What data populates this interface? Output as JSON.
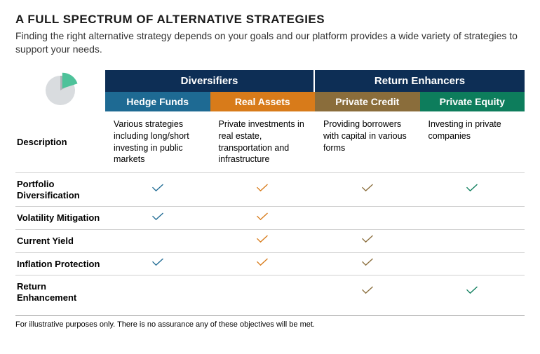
{
  "title": "A FULL SPECTRUM OF ALTERNATIVE STRATEGIES",
  "subtitle": "Finding the right alternative strategy depends on your goals and our platform provides a wide variety of strategies to support your needs.",
  "footnote": "For illustrative purposes only. There is no assurance any of these objectives will be met.",
  "colors": {
    "group_header_bg": "#0d2e55",
    "hedge_funds": "#1e6a93",
    "real_assets": "#d87b1a",
    "private_credit": "#8a6d3b",
    "private_equity": "#0d7d5c",
    "divider": "#d0d0d0",
    "pie_gray_light": "#d9dcdf",
    "pie_gray_dark": "#b0b4b8",
    "pie_accent": "#4ec29a"
  },
  "groups": [
    {
      "label": "Diversifiers",
      "span": 2
    },
    {
      "label": "Return Enhancers",
      "span": 2
    }
  ],
  "columns": [
    {
      "label": "Hedge Funds",
      "color_key": "hedge_funds"
    },
    {
      "label": "Real Assets",
      "color_key": "real_assets"
    },
    {
      "label": "Private Credit",
      "color_key": "private_credit"
    },
    {
      "label": "Private Equity",
      "color_key": "private_equity"
    }
  ],
  "rows": [
    {
      "label": "Description",
      "type": "text",
      "cells": [
        "Various strategies including long/short investing in public markets",
        "Private investments in real estate, transportation and infrastructure",
        "Providing borrowers with capital in various forms",
        "Investing in private companies"
      ]
    },
    {
      "label": "Portfolio Diversification",
      "type": "check",
      "cells": [
        true,
        true,
        true,
        true
      ]
    },
    {
      "label": "Volatility Mitigation",
      "type": "check",
      "cells": [
        true,
        true,
        false,
        false
      ]
    },
    {
      "label": "Current Yield",
      "type": "check",
      "cells": [
        false,
        true,
        true,
        false
      ]
    },
    {
      "label": "Inflation Protection",
      "type": "check",
      "cells": [
        true,
        true,
        true,
        false
      ]
    },
    {
      "label": "Return Enhancement",
      "type": "check",
      "cells": [
        false,
        false,
        true,
        true
      ]
    }
  ]
}
